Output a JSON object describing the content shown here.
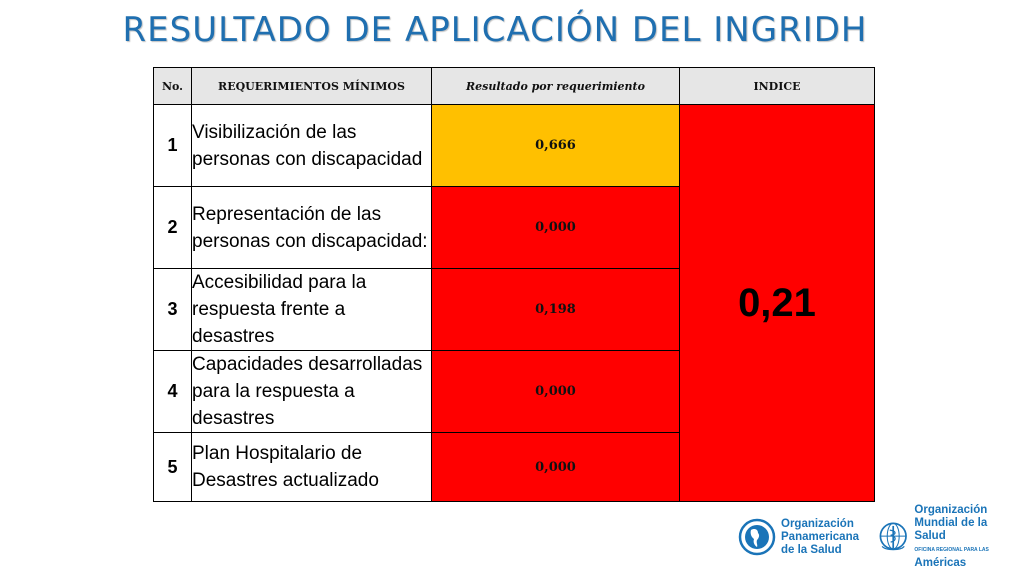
{
  "title": "RESULTADO DE APLICACIÓN DEL INGRIDH",
  "colors": {
    "title": "#1f6fb0",
    "header_bg": "#e6e6e6",
    "yellow": "#ffc000",
    "red": "#ff0000",
    "logo_blue": "#1a74b8"
  },
  "table": {
    "headers": {
      "no": "No.",
      "requirements": "REQUERIMIENTOS MÍNIMOS",
      "result": "Resultado por requerimiento",
      "index": "INDICE"
    },
    "rows": [
      {
        "no": "1",
        "requirement": "Visibilización de las personas con discapacidad",
        "result": "0,666",
        "status_color": "yellow"
      },
      {
        "no": "2",
        "requirement": "Representación de las personas con discapacidad:",
        "result": "0,000",
        "status_color": "red"
      },
      {
        "no": "3",
        "requirement": "Accesibilidad para la respuesta frente a desastres",
        "result": "0,198",
        "status_color": "red"
      },
      {
        "no": "4",
        "requirement": "Capacidades desarrolladas para la respuesta a desastres",
        "result": "0,000",
        "status_color": "red"
      },
      {
        "no": "5",
        "requirement": "Plan Hospitalario de Desastres actualizado",
        "result": "0,000",
        "status_color": "red"
      }
    ],
    "index_value": "0,21"
  },
  "logos": {
    "paho": {
      "line1": "Organización",
      "line2": "Panamericana",
      "line3": "de la Salud",
      "icon": "paho-emblem-icon"
    },
    "who": {
      "line1": "Organización",
      "line2": "Mundial de la Salud",
      "sub": "OFICINA REGIONAL PARA LAS",
      "line3": "Américas",
      "icon": "who-emblem-icon"
    }
  }
}
